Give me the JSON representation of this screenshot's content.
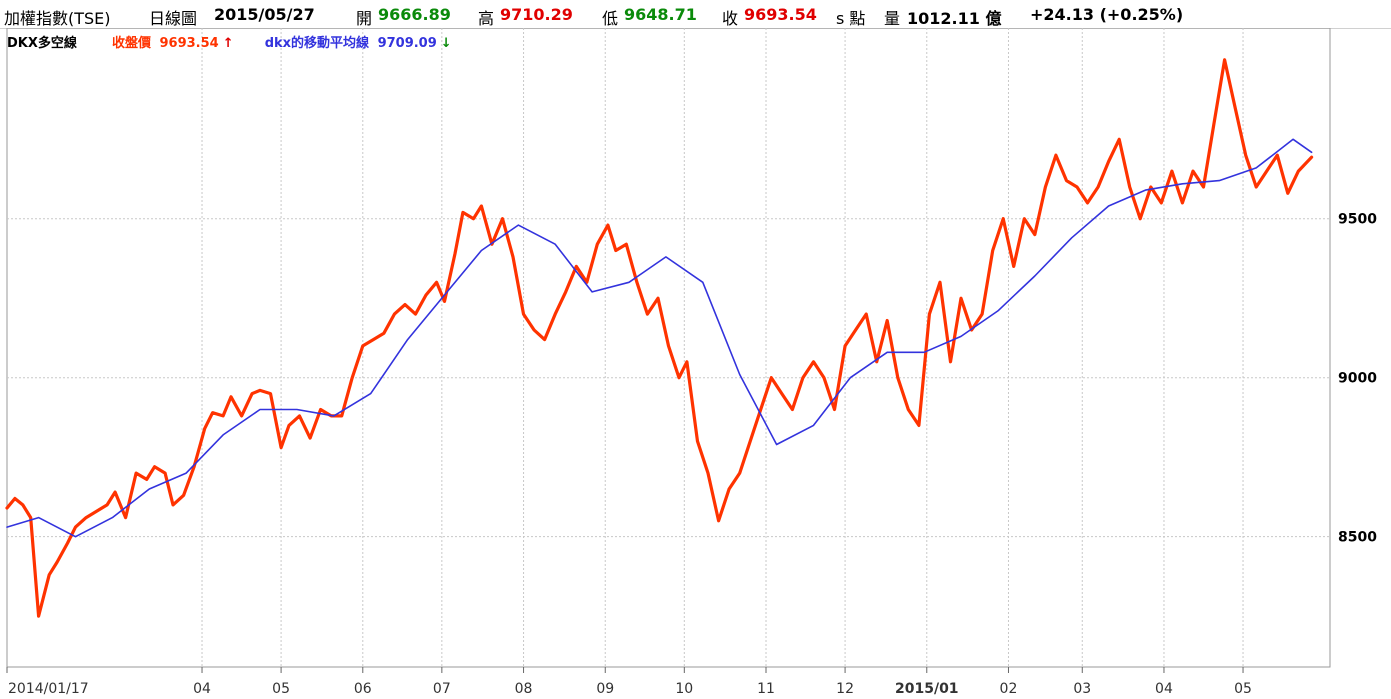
{
  "header": {
    "title": "加權指數(TSE)",
    "period": "日線圖",
    "date": "2015/05/27",
    "open_label": "開",
    "open_value": "9666.89",
    "high_label": "高",
    "high_value": "9710.29",
    "low_label": "低",
    "low_value": "9648.71",
    "close_label": "收",
    "close_value": "9693.54",
    "close_suffix": "s 點",
    "volume_label": "量",
    "volume_value": "1012.11 億",
    "change": "+24.13 (+0.25%)"
  },
  "legend": {
    "indicator": "DKX多空線",
    "close_label": "收盤價",
    "close_value": "9693.54",
    "close_arrow": "↑",
    "ma_label": "dkx的移動平均線",
    "ma_value": "9709.09",
    "ma_arrow": "↓"
  },
  "colors": {
    "close_series": "#ff3300",
    "ma_series": "#3333dd",
    "up_arrow": "#e00000",
    "down_arrow": "#0a8a0a",
    "grid": "#c8c8c8"
  },
  "chart_data": {
    "type": "line",
    "ylim": [
      8090,
      10100
    ],
    "yticks": [
      8500,
      9000,
      9500
    ],
    "grid": true,
    "xticks": [
      {
        "label": "2014/01/17",
        "x": "2014-01-17"
      },
      {
        "label": "04",
        "x": "2014-04-01"
      },
      {
        "label": "05",
        "x": "2014-05-01"
      },
      {
        "label": "06",
        "x": "2014-06-01"
      },
      {
        "label": "07",
        "x": "2014-07-01"
      },
      {
        "label": "08",
        "x": "2014-08-01"
      },
      {
        "label": "09",
        "x": "2014-09-01"
      },
      {
        "label": "10",
        "x": "2014-10-01"
      },
      {
        "label": "11",
        "x": "2014-11-01"
      },
      {
        "label": "12",
        "x": "2014-12-01"
      },
      {
        "label": "2015/01",
        "x": "2015-01-01"
      },
      {
        "label": "02",
        "x": "2015-02-01"
      },
      {
        "label": "03",
        "x": "2015-03-01"
      },
      {
        "label": "04",
        "x": "2015-04-01"
      },
      {
        "label": "05",
        "x": "2015-05-01"
      }
    ],
    "xlim": [
      "2014-01-17",
      "2015-06-03"
    ],
    "series": [
      {
        "name": "收盤價",
        "x": [
          "2014-01-17",
          "2014-01-20",
          "2014-01-23",
          "2014-01-26",
          "2014-01-29",
          "2014-02-02",
          "2014-02-05",
          "2014-02-09",
          "2014-02-12",
          "2014-02-16",
          "2014-02-20",
          "2014-02-24",
          "2014-02-27",
          "2014-03-03",
          "2014-03-07",
          "2014-03-11",
          "2014-03-14",
          "2014-03-18",
          "2014-03-21",
          "2014-03-25",
          "2014-03-29",
          "2014-04-02",
          "2014-04-05",
          "2014-04-09",
          "2014-04-12",
          "2014-04-16",
          "2014-04-20",
          "2014-04-23",
          "2014-04-27",
          "2014-05-01",
          "2014-05-04",
          "2014-05-08",
          "2014-05-12",
          "2014-05-16",
          "2014-05-20",
          "2014-05-24",
          "2014-05-28",
          "2014-06-01",
          "2014-06-05",
          "2014-06-09",
          "2014-06-13",
          "2014-06-17",
          "2014-06-21",
          "2014-06-25",
          "2014-06-29",
          "2014-07-02",
          "2014-07-06",
          "2014-07-09",
          "2014-07-13",
          "2014-07-16",
          "2014-07-20",
          "2014-07-24",
          "2014-07-28",
          "2014-08-01",
          "2014-08-05",
          "2014-08-09",
          "2014-08-13",
          "2014-08-17",
          "2014-08-21",
          "2014-08-25",
          "2014-08-29",
          "2014-09-02",
          "2014-09-05",
          "2014-09-09",
          "2014-09-13",
          "2014-09-17",
          "2014-09-21",
          "2014-09-25",
          "2014-09-29",
          "2014-10-02",
          "2014-10-06",
          "2014-10-10",
          "2014-10-14",
          "2014-10-18",
          "2014-10-22",
          "2014-10-26",
          "2014-10-30",
          "2014-11-03",
          "2014-11-07",
          "2014-11-11",
          "2014-11-15",
          "2014-11-19",
          "2014-11-23",
          "2014-11-27",
          "2014-12-01",
          "2014-12-05",
          "2014-12-09",
          "2014-12-13",
          "2014-12-17",
          "2014-12-21",
          "2014-12-25",
          "2014-12-29",
          "2015-01-02",
          "2015-01-06",
          "2015-01-10",
          "2015-01-14",
          "2015-01-18",
          "2015-01-22",
          "2015-01-26",
          "2015-01-30",
          "2015-02-03",
          "2015-02-07",
          "2015-02-11",
          "2015-02-15",
          "2015-02-19",
          "2015-02-23",
          "2015-02-27",
          "2015-03-03",
          "2015-03-07",
          "2015-03-11",
          "2015-03-15",
          "2015-03-19",
          "2015-03-23",
          "2015-03-27",
          "2015-03-31",
          "2015-04-04",
          "2015-04-08",
          "2015-04-12",
          "2015-04-16",
          "2015-04-20",
          "2015-04-24",
          "2015-04-28",
          "2015-05-02",
          "2015-05-06",
          "2015-05-10",
          "2015-05-14",
          "2015-05-18",
          "2015-05-22",
          "2015-05-27"
        ],
        "y": [
          8590,
          8620,
          8600,
          8560,
          8250,
          8380,
          8420,
          8480,
          8530,
          8560,
          8580,
          8600,
          8640,
          8560,
          8700,
          8680,
          8720,
          8700,
          8600,
          8630,
          8720,
          8840,
          8890,
          8880,
          8940,
          8880,
          8950,
          8960,
          8950,
          8780,
          8850,
          8880,
          8810,
          8900,
          8880,
          8880,
          9000,
          9100,
          9120,
          9140,
          9200,
          9230,
          9200,
          9260,
          9300,
          9240,
          9390,
          9520,
          9500,
          9540,
          9420,
          9500,
          9380,
          9200,
          9150,
          9120,
          9200,
          9270,
          9350,
          9300,
          9420,
          9480,
          9400,
          9420,
          9300,
          9200,
          9250,
          9100,
          9000,
          9050,
          8800,
          8700,
          8550,
          8650,
          8700,
          8800,
          8900,
          9000,
          8950,
          8900,
          9000,
          9050,
          9000,
          8900,
          9100,
          9150,
          9200,
          9050,
          9180,
          9000,
          8900,
          8850,
          9200,
          9300,
          9050,
          9250,
          9150,
          9200,
          9400,
          9500,
          9350,
          9500,
          9450,
          9600,
          9700,
          9620,
          9600,
          9550,
          9600,
          9680,
          9750,
          9600,
          9500,
          9600,
          9550,
          9650,
          9550,
          9650,
          9600,
          9800,
          10000,
          9850,
          9700,
          9600,
          9650,
          9700,
          9580,
          9650,
          9693.54
        ]
      },
      {
        "name": "dkx的移動平均線",
        "x": [
          "2014-01-17",
          "2014-01-29",
          "2014-02-12",
          "2014-02-26",
          "2014-03-12",
          "2014-03-26",
          "2014-04-09",
          "2014-04-23",
          "2014-05-07",
          "2014-05-21",
          "2014-06-04",
          "2014-06-18",
          "2014-07-02",
          "2014-07-16",
          "2014-07-30",
          "2014-08-13",
          "2014-08-27",
          "2014-09-10",
          "2014-09-24",
          "2014-10-08",
          "2014-10-22",
          "2014-11-05",
          "2014-11-19",
          "2014-12-03",
          "2014-12-17",
          "2014-12-31",
          "2015-01-14",
          "2015-01-28",
          "2015-02-11",
          "2015-02-25",
          "2015-03-11",
          "2015-03-25",
          "2015-04-08",
          "2015-04-22",
          "2015-05-06",
          "2015-05-20",
          "2015-05-27"
        ],
        "y": [
          8530,
          8560,
          8500,
          8560,
          8650,
          8700,
          8820,
          8900,
          8900,
          8880,
          8950,
          9120,
          9260,
          9400,
          9480,
          9420,
          9270,
          9300,
          9380,
          9300,
          9010,
          8790,
          8850,
          9000,
          9080,
          9080,
          9130,
          9210,
          9320,
          9440,
          9540,
          9590,
          9610,
          9620,
          9660,
          9750,
          9709.09
        ]
      }
    ]
  }
}
